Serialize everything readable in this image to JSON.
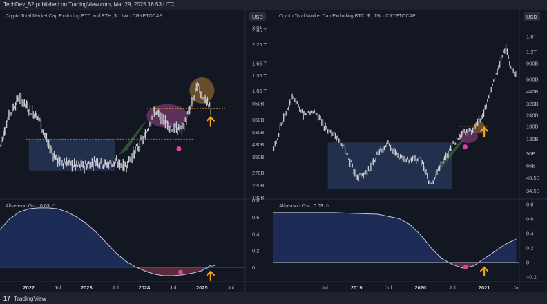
{
  "header": {
    "publisher_text": "TechDev_52 published on TradingView.com, Mar 29, 2025 16:53 UTC"
  },
  "footer": {
    "logo_text": "17",
    "brand_text": "TradingView"
  },
  "colors": {
    "background": "#131722",
    "candles": "#c9ccd3",
    "indicator_fill": "#1d2b57",
    "indicator_negative_fill": "#5a2a3a",
    "indicator_line": "#c5cbe0",
    "consolidation_box": "#2a3a5c",
    "breakout_channel": "#3f7a3f",
    "retest_ellipse": "#a44b8f",
    "breakout_ellipse": "#b07a32",
    "pink_level_line": "#d94fb0",
    "orange_level_line": "#f0a020",
    "arrow": "#f7a21b",
    "marker_dot": "#e0409f"
  },
  "chart_data": [
    {
      "type": "line",
      "title": "Crypto Total Market Cap Excluding BTC and ETH, $ · 1W · CRYPTOCAP",
      "currency_badge": "USD",
      "y_scale": "log",
      "y_tick_labels": [
        "3.0T",
        "2.85 T",
        "2.25 T",
        "1.65 T",
        "1.35 T",
        "1.05 T",
        "850B",
        "650B",
        "530B",
        "430B",
        "350B",
        "270B",
        "220B",
        "180B"
      ],
      "x_tick_labels": [
        "2022",
        "Jul",
        "2023",
        "Jul",
        "2024",
        "Jul",
        "2025",
        "Jul"
      ],
      "series": [
        {
          "values": [
            {
              "x": "2021-07",
              "y": 420
            },
            {
              "x": "2021-09",
              "y": 720
            },
            {
              "x": "2021-11",
              "y": 940
            },
            {
              "x": "2022-01",
              "y": 780
            },
            {
              "x": "2022-03",
              "y": 680
            },
            {
              "x": "2022-05",
              "y": 430
            },
            {
              "x": "2022-07",
              "y": 330
            },
            {
              "x": "2022-09",
              "y": 320
            },
            {
              "x": "2022-11",
              "y": 300
            },
            {
              "x": "2023-01",
              "y": 305
            },
            {
              "x": "2023-03",
              "y": 330
            },
            {
              "x": "2023-05",
              "y": 310
            },
            {
              "x": "2023-07",
              "y": 320
            },
            {
              "x": "2023-09",
              "y": 300
            },
            {
              "x": "2023-11",
              "y": 380
            },
            {
              "x": "2024-01",
              "y": 480
            },
            {
              "x": "2024-03",
              "y": 750
            },
            {
              "x": "2024-05",
              "y": 650
            },
            {
              "x": "2024-07",
              "y": 560
            },
            {
              "x": "2024-09",
              "y": 560
            },
            {
              "x": "2024-11",
              "y": 850
            },
            {
              "x": "2024-12",
              "y": 1150
            },
            {
              "x": "2025-02",
              "y": 850
            },
            {
              "x": "2025-03",
              "y": 760
            }
          ]
        }
      ],
      "levels": {
        "pink_dotted": 470,
        "orange_dotted": 780
      },
      "indicator": {
        "name": "Altseason Osc",
        "label_values": [
          "0.03",
          "0"
        ],
        "y_tick_labels": [
          "0.8",
          "0.6",
          "0.4",
          "0.2",
          "0"
        ],
        "ylim": [
          -0.1,
          0.8
        ],
        "values": [
          {
            "x": "2021-07",
            "y": 0.45
          },
          {
            "x": "2021-09",
            "y": 0.58
          },
          {
            "x": "2021-11",
            "y": 0.66
          },
          {
            "x": "2022-01",
            "y": 0.7
          },
          {
            "x": "2022-03",
            "y": 0.71
          },
          {
            "x": "2022-05",
            "y": 0.71
          },
          {
            "x": "2022-07",
            "y": 0.7
          },
          {
            "x": "2022-09",
            "y": 0.66
          },
          {
            "x": "2022-11",
            "y": 0.6
          },
          {
            "x": "2023-01",
            "y": 0.52
          },
          {
            "x": "2023-03",
            "y": 0.42
          },
          {
            "x": "2023-05",
            "y": 0.3
          },
          {
            "x": "2023-07",
            "y": 0.18
          },
          {
            "x": "2023-09",
            "y": 0.08
          },
          {
            "x": "2023-11",
            "y": 0.01
          },
          {
            "x": "2024-01",
            "y": -0.04
          },
          {
            "x": "2024-03",
            "y": -0.08
          },
          {
            "x": "2024-05",
            "y": -0.1
          },
          {
            "x": "2024-07",
            "y": -0.1
          },
          {
            "x": "2024-09",
            "y": -0.09
          },
          {
            "x": "2024-11",
            "y": -0.07
          },
          {
            "x": "2025-01",
            "y": -0.04
          },
          {
            "x": "2025-03",
            "y": 0.03
          }
        ]
      }
    },
    {
      "type": "line",
      "title": "Crypto Total Market Cap Excluding BTC, $ · 1W · CRYPTOCAP",
      "currency_badge": "USD",
      "y_scale": "log",
      "y_tick_labels": [
        "1.8T",
        "1.2T",
        "900B",
        "600B",
        "440B",
        "320B",
        "240B",
        "180B",
        "130B",
        "90B",
        "66B",
        "48.5B",
        "34.5B"
      ],
      "x_tick_labels": [
        "Jul",
        "2019",
        "Jul",
        "2020",
        "Jul",
        "2021",
        "Jul"
      ],
      "series": [
        {
          "values": [
            {
              "x": "2017-09",
              "y": 85
            },
            {
              "x": "2017-11",
              "y": 200
            },
            {
              "x": "2018-01",
              "y": 380
            },
            {
              "x": "2018-03",
              "y": 240
            },
            {
              "x": "2018-05",
              "y": 270
            },
            {
              "x": "2018-07",
              "y": 180
            },
            {
              "x": "2018-09",
              "y": 140
            },
            {
              "x": "2018-11",
              "y": 95
            },
            {
              "x": "2019-01",
              "y": 48
            },
            {
              "x": "2019-03",
              "y": 55
            },
            {
              "x": "2019-05",
              "y": 90
            },
            {
              "x": "2019-07",
              "y": 115
            },
            {
              "x": "2019-09",
              "y": 80
            },
            {
              "x": "2019-11",
              "y": 75
            },
            {
              "x": "2020-01",
              "y": 78
            },
            {
              "x": "2020-03",
              "y": 40
            },
            {
              "x": "2020-05",
              "y": 70
            },
            {
              "x": "2020-07",
              "y": 110
            },
            {
              "x": "2020-09",
              "y": 150
            },
            {
              "x": "2020-11",
              "y": 165
            },
            {
              "x": "2021-01",
              "y": 260
            },
            {
              "x": "2021-03",
              "y": 600
            },
            {
              "x": "2021-05",
              "y": 1400
            },
            {
              "x": "2021-06",
              "y": 800
            },
            {
              "x": "2021-07",
              "y": 650
            }
          ]
        }
      ],
      "levels": {
        "pink_dotted": 120,
        "orange_dotted": 180
      },
      "indicator": {
        "name": "Altseason Osc",
        "label_values": [
          "0.03",
          "0"
        ],
        "y_tick_labels": [
          "0.8",
          "0.6",
          "0.4",
          "0.2",
          "0",
          "−0.2"
        ],
        "ylim": [
          -0.25,
          0.85
        ],
        "values": [
          {
            "x": "2017-09",
            "y": 0.68
          },
          {
            "x": "2018-01",
            "y": 0.68
          },
          {
            "x": "2018-05",
            "y": 0.68
          },
          {
            "x": "2018-09",
            "y": 0.68
          },
          {
            "x": "2019-01",
            "y": 0.67
          },
          {
            "x": "2019-05",
            "y": 0.66
          },
          {
            "x": "2019-09",
            "y": 0.6
          },
          {
            "x": "2019-11",
            "y": 0.52
          },
          {
            "x": "2020-01",
            "y": 0.38
          },
          {
            "x": "2020-03",
            "y": 0.2
          },
          {
            "x": "2020-05",
            "y": 0.05
          },
          {
            "x": "2020-07",
            "y": -0.03
          },
          {
            "x": "2020-09",
            "y": -0.08
          },
          {
            "x": "2020-11",
            "y": -0.05
          },
          {
            "x": "2021-01",
            "y": 0.05
          },
          {
            "x": "2021-03",
            "y": 0.15
          },
          {
            "x": "2021-05",
            "y": 0.25
          },
          {
            "x": "2021-07",
            "y": 0.32
          }
        ]
      }
    }
  ]
}
